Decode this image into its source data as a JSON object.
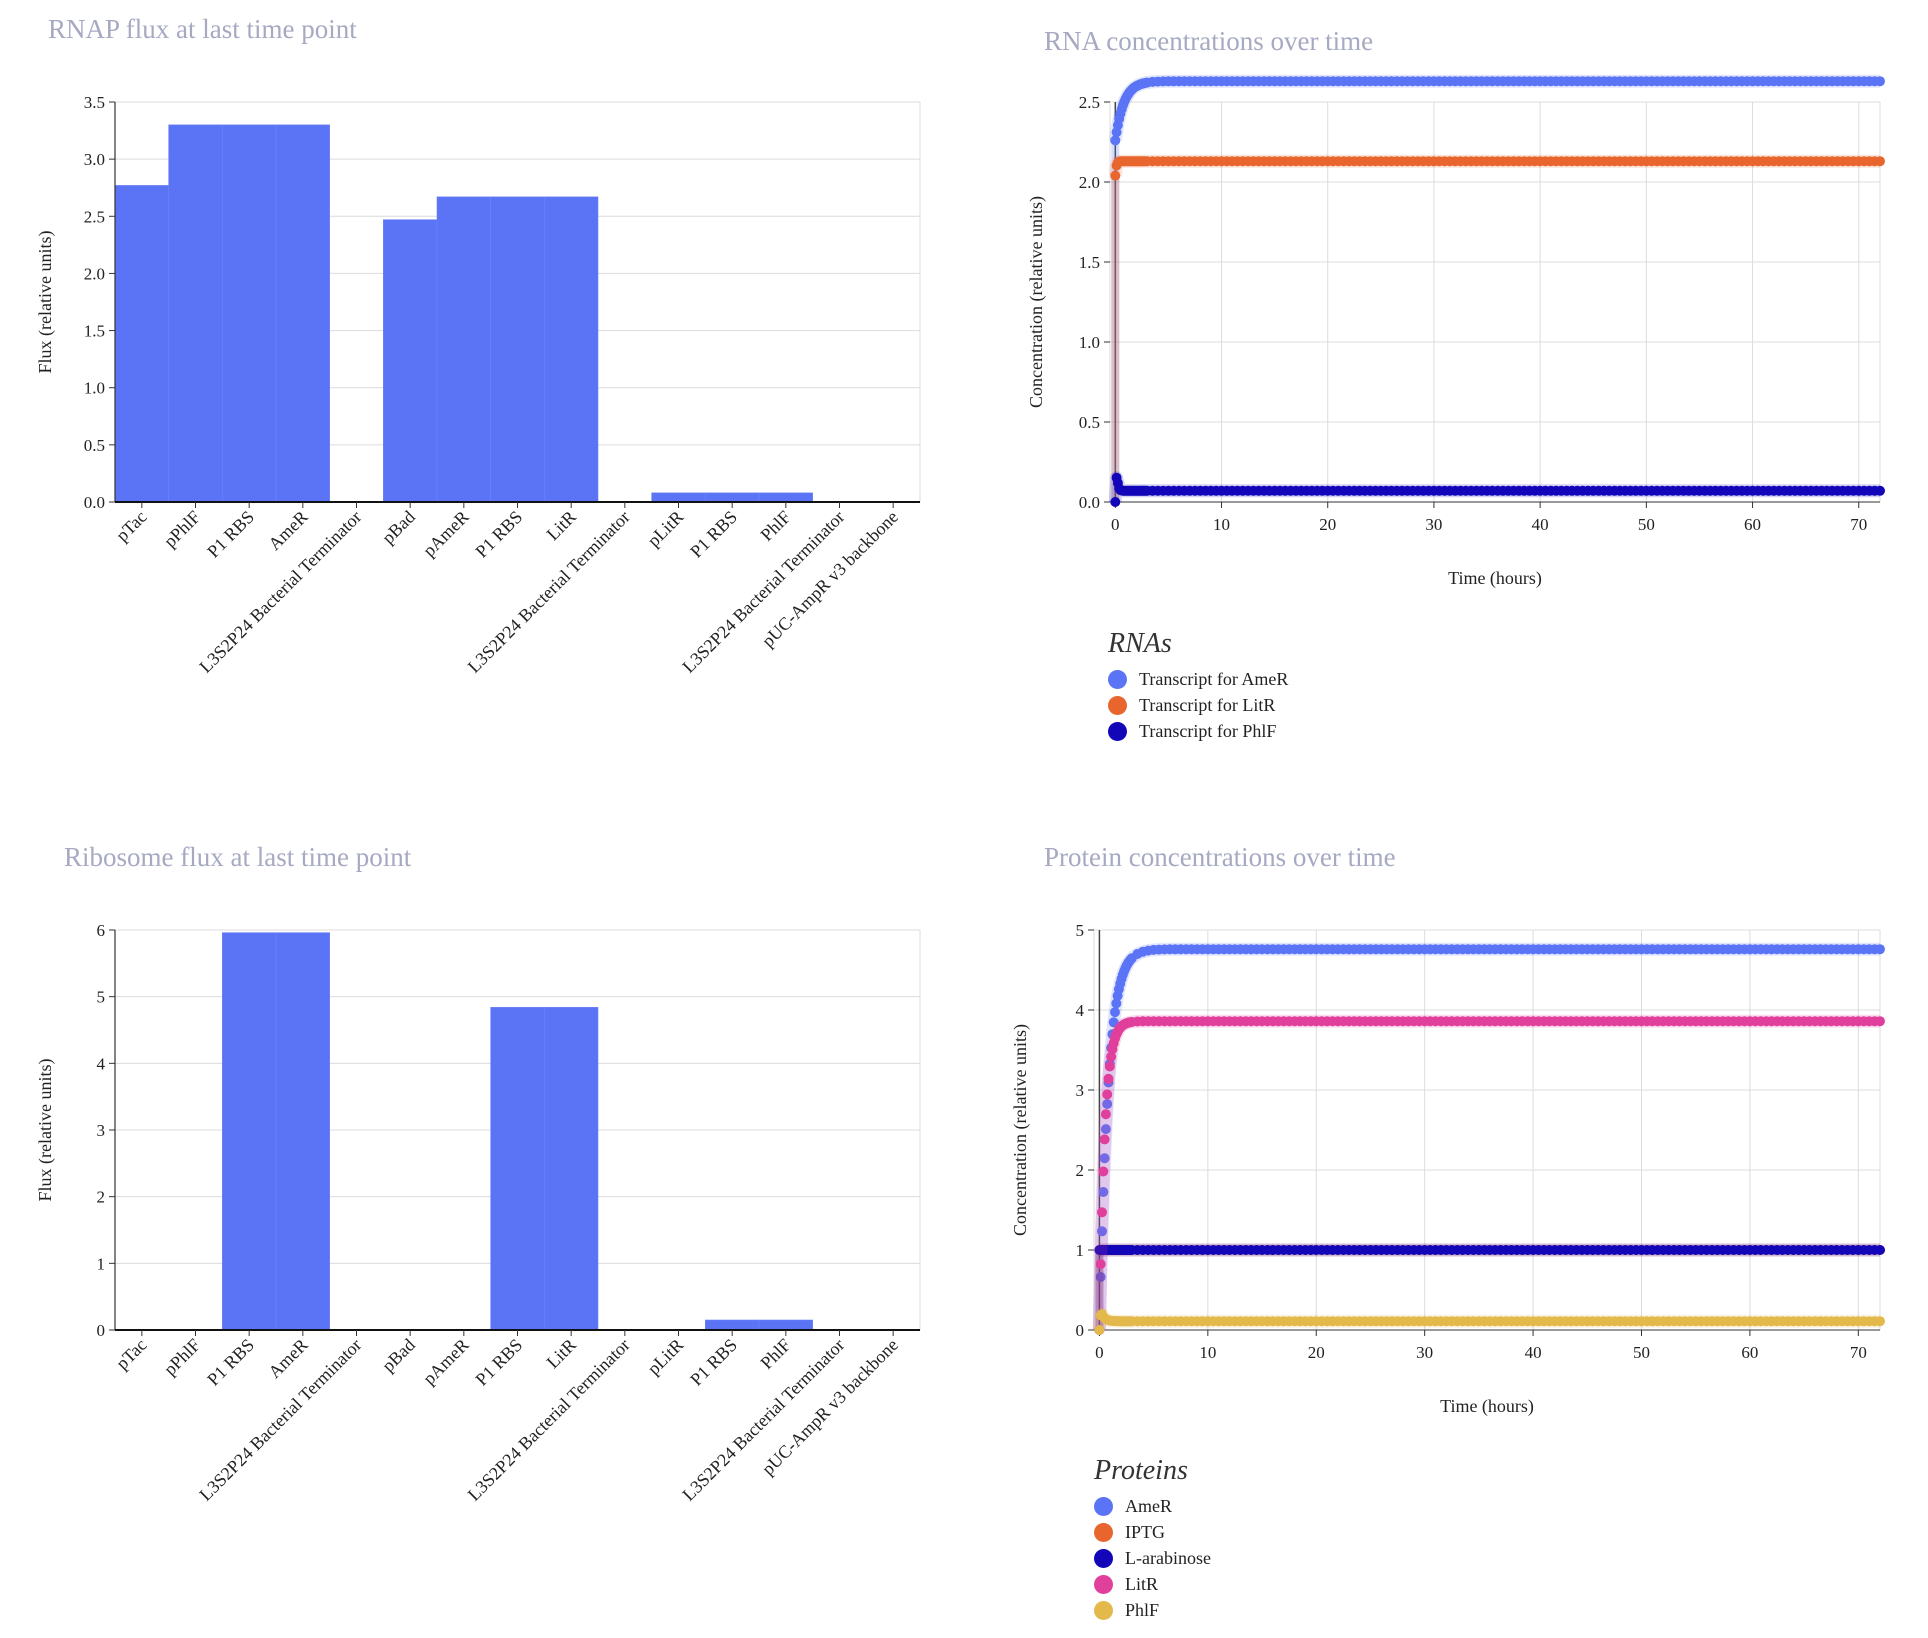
{
  "chart_data": [
    {
      "id": "rnap",
      "type": "bar",
      "title": "RNAP flux at last time point",
      "ylabel": "Flux (relative units)",
      "ylim": [
        0,
        3.5
      ],
      "yticks": [
        "0.0",
        "0.5",
        "1.0",
        "1.5",
        "2.0",
        "2.5",
        "3.0",
        "3.5"
      ],
      "categories": [
        "pTac",
        "pPhlF",
        "P1 RBS",
        "AmeR",
        "L3S2P24 Bacterial Terminator",
        "pBad",
        "pAmeR",
        "P1 RBS",
        "LitR",
        "L3S2P24 Bacterial Terminator",
        "pLitR",
        "P1 RBS",
        "PhlF",
        "L3S2P24 Bacterial Terminator",
        "pUC-AmpR v3 backbone"
      ],
      "values": [
        2.77,
        3.3,
        3.3,
        3.3,
        0,
        2.47,
        2.67,
        2.67,
        2.67,
        0,
        0.08,
        0.08,
        0.08,
        0,
        0
      ]
    },
    {
      "id": "ribosome",
      "type": "bar",
      "title": "Ribosome flux at last time point",
      "ylabel": "Flux (relative units)",
      "ylim": [
        0,
        6
      ],
      "yticks": [
        "0",
        "1",
        "2",
        "3",
        "4",
        "5",
        "6"
      ],
      "categories": [
        "pTac",
        "pPhlF",
        "P1 RBS",
        "AmeR",
        "L3S2P24 Bacterial Terminator",
        "pBad",
        "pAmeR",
        "P1 RBS",
        "LitR",
        "L3S2P24 Bacterial Terminator",
        "pLitR",
        "P1 RBS",
        "PhlF",
        "L3S2P24 Bacterial Terminator",
        "pUC-AmpR v3 backbone"
      ],
      "values": [
        0,
        0,
        5.96,
        5.96,
        0,
        0,
        0,
        4.84,
        4.84,
        0,
        0,
        0.15,
        0.15,
        0,
        0
      ]
    },
    {
      "id": "rna",
      "type": "scatter",
      "title": "RNA concentrations over time",
      "xlabel": "Time (hours)",
      "ylabel": "Concentration (relative units)",
      "xlim": [
        -0.5,
        72
      ],
      "ylim": [
        0,
        2.5
      ],
      "xticks": [
        0,
        10,
        20,
        30,
        40,
        50,
        60,
        70
      ],
      "yticks": [
        "0.0",
        "0.5",
        "1.0",
        "1.5",
        "2.0",
        "2.5"
      ],
      "legend_title": "RNAs",
      "series": [
        {
          "name": "Transcript for AmeR",
          "color": "#5b73f5",
          "initial": 2.26,
          "steady": 2.63,
          "tau": 0.8
        },
        {
          "name": "Transcript for LitR",
          "color": "#e8662e",
          "initial": 2.04,
          "steady": 2.13,
          "tau": 0.1
        },
        {
          "name": "Transcript for PhlF",
          "color": "#1206b8",
          "initial": 0.0,
          "steady": 0.07,
          "peak": 0.19,
          "tau": 0.1
        }
      ]
    },
    {
      "id": "protein",
      "type": "scatter",
      "title": "Protein concentrations over time",
      "xlabel": "Time (hours)",
      "ylabel": "Concentration (relative units)",
      "xlim": [
        -0.5,
        72
      ],
      "ylim": [
        0,
        5
      ],
      "xticks": [
        0,
        10,
        20,
        30,
        40,
        50,
        60,
        70
      ],
      "yticks": [
        "0",
        "1",
        "2",
        "3",
        "4",
        "5"
      ],
      "legend_title": "Proteins",
      "series": [
        {
          "name": "AmeR",
          "color": "#5b73f5",
          "initial": 0.0,
          "steady": 4.76,
          "tau": 0.8
        },
        {
          "name": "IPTG",
          "color": "#e8662e",
          "initial": 1.0,
          "steady": 1.0,
          "tau": 0.1
        },
        {
          "name": "L-arabinose",
          "color": "#1206b8",
          "initial": 1.0,
          "steady": 1.0,
          "tau": 0.1
        },
        {
          "name": "LitR",
          "color": "#e13f9c",
          "initial": 0.0,
          "steady": 3.86,
          "tau": 0.5
        },
        {
          "name": "PhlF",
          "color": "#e2b94a",
          "initial": 0.0,
          "steady": 0.11,
          "peak": 0.23,
          "tau": 0.3
        }
      ]
    }
  ]
}
